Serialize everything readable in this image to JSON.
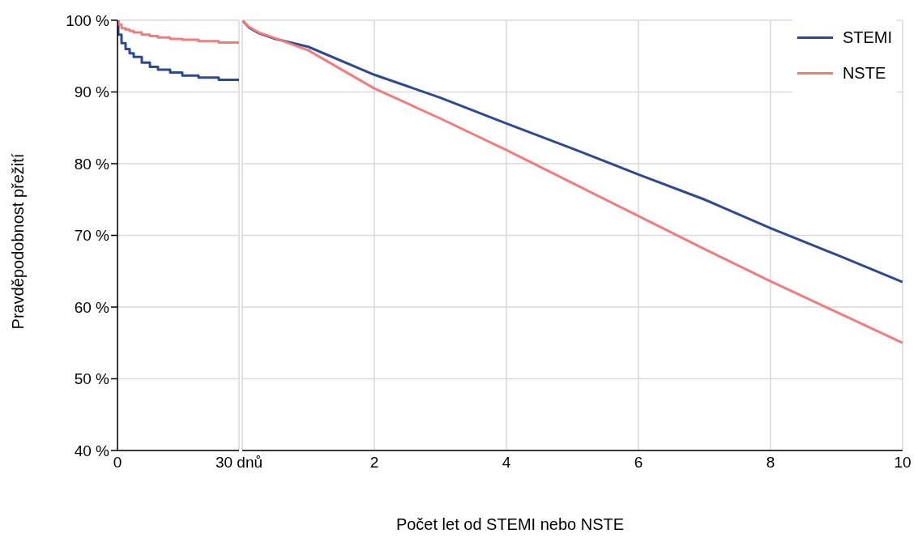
{
  "chart_data": [
    {
      "type": "step",
      "ylabel": "Pravděpodobnost přežití",
      "x": [
        0,
        0.2,
        1,
        2,
        3,
        4,
        6,
        8,
        10,
        13,
        16,
        20,
        25,
        30
      ],
      "series": [
        {
          "color": "#2e4a8c",
          "values": [
            100,
            98,
            96.8,
            96,
            95.4,
            94.9,
            94.1,
            93.5,
            93.1,
            92.7,
            92.3,
            92,
            91.7,
            91.5
          ]
        },
        {
          "color": "#f07c80",
          "values": [
            100,
            99.4,
            98.9,
            98.7,
            98.5,
            98.3,
            98.0,
            97.8,
            97.6,
            97.4,
            97.3,
            97.1,
            96.9,
            96.7
          ]
        }
      ],
      "xlim": [
        0,
        30
      ],
      "xticks": [
        0,
        {
          "value": 30,
          "label": "30 dnů"
        }
      ],
      "ylim": [
        40,
        100
      ],
      "yticks": [
        {
          "value": 40,
          "label": "40 %"
        },
        {
          "value": 50,
          "label": "50 %"
        },
        {
          "value": 60,
          "label": "60 %"
        },
        {
          "value": 70,
          "label": "70 %"
        },
        {
          "value": 80,
          "label": "80 %"
        },
        {
          "value": 90,
          "label": "90 %"
        },
        {
          "value": 100,
          "label": "100 %"
        }
      ],
      "grid": true
    },
    {
      "type": "line",
      "xlabel": "Počet let od STEMI nebo NSTE",
      "x": [
        0,
        0.1,
        0.25,
        0.5,
        1,
        2,
        3,
        4,
        5,
        6,
        7,
        8,
        9,
        10
      ],
      "series": [
        {
          "name": "STEMI",
          "color": "#2e4a8c",
          "values": [
            100,
            99,
            98.2,
            97.4,
            96.3,
            92.4,
            89.2,
            85.6,
            82.1,
            78.5,
            75,
            71,
            67.3,
            63.5
          ]
        },
        {
          "name": "NSTE",
          "color": "#f07c80",
          "values": [
            100,
            99.1,
            98.3,
            97.5,
            95.8,
            90.5,
            86.3,
            81.9,
            77.3,
            72.7,
            68.1,
            63.6,
            59.3,
            55
          ]
        }
      ],
      "xlim": [
        0,
        10
      ],
      "xticks": [
        {
          "value": 0,
          "label": null
        },
        2,
        4,
        6,
        8,
        10
      ],
      "ylim": [
        40,
        100
      ],
      "yticks": [
        40,
        50,
        60,
        70,
        80,
        90,
        100
      ],
      "grid": true,
      "legend": "top right",
      "tick_labels": "x"
    }
  ]
}
